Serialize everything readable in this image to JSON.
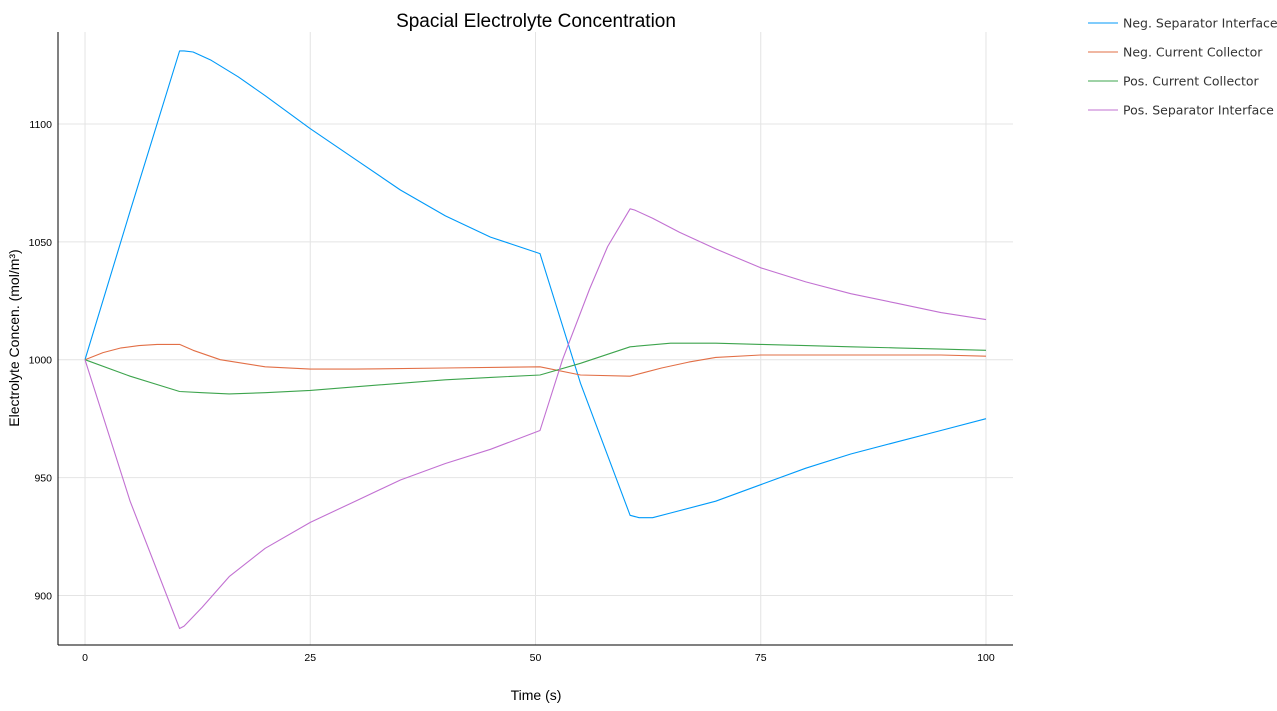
{
  "chart_data": {
    "type": "line",
    "title": "Spacial Electrolyte Concentration",
    "xlabel": "Time (s)",
    "ylabel": "Electrolyte Concen. (mol/m³)",
    "xlim": [
      -3,
      103
    ],
    "ylim": [
      879,
      1139
    ],
    "xticks": [
      0,
      25,
      50,
      75,
      100
    ],
    "yticks": [
      900,
      950,
      1000,
      1050,
      1100
    ],
    "grid": true,
    "legend_position": "outside-top-right",
    "series": [
      {
        "name": "Neg. Separator Interface",
        "color": "#009af9",
        "x": [
          0,
          5,
          10.5,
          11,
          12,
          14,
          17,
          20,
          25,
          30,
          35,
          40,
          45,
          50.5,
          55,
          60.5,
          61.5,
          63,
          65,
          70,
          75,
          80,
          85,
          90,
          95,
          100
        ],
        "y": [
          1000,
          1063,
          1131,
          1131,
          1130.5,
          1127,
          1120,
          1112,
          1098,
          1085,
          1072,
          1061,
          1052,
          1045,
          990,
          934,
          933,
          933,
          935,
          940,
          947,
          954,
          960,
          965,
          970,
          975
        ]
      },
      {
        "name": "Neg. Current Collector",
        "color": "#e26f46",
        "x": [
          0,
          2,
          4,
          6,
          8,
          10,
          10.5,
          12,
          15,
          20,
          25,
          30,
          40,
          50.5,
          55,
          60.5,
          62,
          64,
          67,
          70,
          75,
          80,
          85,
          90,
          95,
          100
        ],
        "y": [
          1000,
          1003,
          1005,
          1006,
          1006.5,
          1006.5,
          1006.5,
          1004,
          1000,
          997,
          996,
          996,
          996.5,
          997,
          993.5,
          993,
          994.5,
          996.5,
          999,
          1001,
          1002,
          1002,
          1002,
          1002,
          1002,
          1001.5
        ]
      },
      {
        "name": "Pos. Current Collector",
        "color": "#3da44d",
        "x": [
          0,
          5,
          10.5,
          13,
          16,
          20,
          25,
          30,
          35,
          40,
          45,
          50.5,
          55,
          60.5,
          65,
          70,
          75,
          80,
          85,
          90,
          95,
          100
        ],
        "y": [
          1000,
          993,
          986.5,
          986,
          985.5,
          986,
          987,
          988.5,
          990,
          991.5,
          992.5,
          993.5,
          998.5,
          1005.5,
          1007,
          1007,
          1006.5,
          1006,
          1005.5,
          1005,
          1004.5,
          1004
        ]
      },
      {
        "name": "Pos. Separator Interface",
        "color": "#c271d2",
        "x": [
          0,
          5,
          10.5,
          11,
          13,
          16,
          20,
          25,
          30,
          35,
          40,
          45,
          50.5,
          53,
          56,
          58,
          60.5,
          61,
          63,
          66,
          70,
          75,
          80,
          85,
          90,
          95,
          100
        ],
        "y": [
          1000,
          940,
          886,
          887,
          895,
          908,
          920,
          931,
          940,
          949,
          956,
          962,
          970,
          1000,
          1030,
          1048,
          1064,
          1063.5,
          1060,
          1054,
          1047,
          1039,
          1033,
          1028,
          1024,
          1020,
          1017
        ]
      }
    ]
  }
}
